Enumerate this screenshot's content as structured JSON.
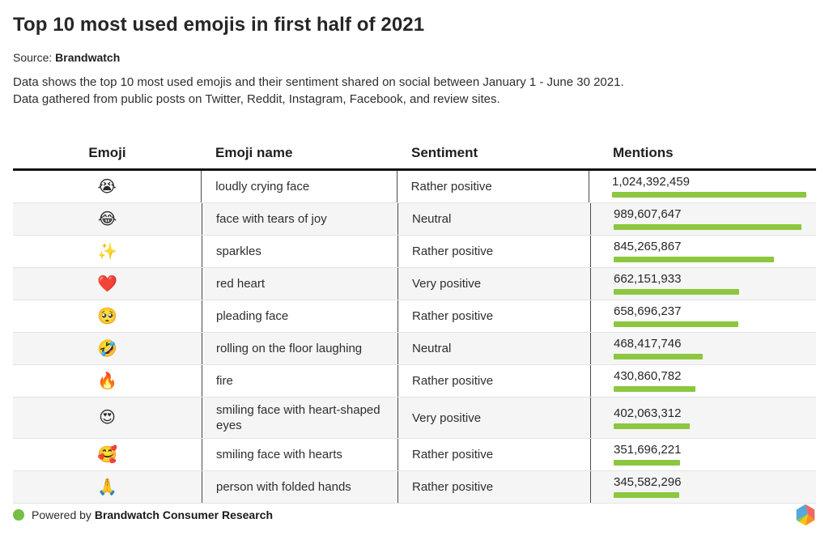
{
  "page": {
    "title": "Top 10 most used emojis in first half of 2021",
    "source_label": "Source:",
    "source_name": "Brandwatch",
    "description_line1": "Data shows the top 10 most used emojis and their sentiment shared on social between January 1 - June 30 2021.",
    "description_line2": "Data gathered from public posts on Twitter, Reddit, Instagram, Facebook, and review sites."
  },
  "table": {
    "columns": [
      "Emoji",
      "Emoji name",
      "Sentiment",
      "Mentions"
    ],
    "rows": [
      {
        "emoji": "😭",
        "name": "loudly crying face",
        "sentiment": "Rather positive",
        "mentions": "1,024,392,459"
      },
      {
        "emoji": "😂",
        "name": "face with tears of joy",
        "sentiment": "Neutral",
        "mentions": "989,607,647"
      },
      {
        "emoji": "✨",
        "name": "sparkles",
        "sentiment": "Rather positive",
        "mentions": "845,265,867"
      },
      {
        "emoji": "❤️",
        "name": "red heart",
        "sentiment": "Very positive",
        "mentions": "662,151,933"
      },
      {
        "emoji": "🥺",
        "name": "pleading face",
        "sentiment": "Rather positive",
        "mentions": "658,696,237"
      },
      {
        "emoji": "🤣",
        "name": "rolling on the floor laughing",
        "sentiment": "Neutral",
        "mentions": "468,417,746"
      },
      {
        "emoji": "🔥",
        "name": "fire",
        "sentiment": "Rather positive",
        "mentions": "430,860,782"
      },
      {
        "emoji": "😍",
        "name": "smiling face with heart-shaped eyes",
        "sentiment": "Very positive",
        "mentions": "402,063,312"
      },
      {
        "emoji": "🥰",
        "name": "smiling face with hearts",
        "sentiment": "Rather positive",
        "mentions": "351,696,221"
      },
      {
        "emoji": "🙏",
        "name": "person with folded hands",
        "sentiment": "Rather positive",
        "mentions": "345,582,296"
      }
    ]
  },
  "chart_data": {
    "type": "bar",
    "orientation": "horizontal",
    "title": "Top 10 most used emojis in first half of 2021",
    "categories": [
      "loudly crying face",
      "face with tears of joy",
      "sparkles",
      "red heart",
      "pleading face",
      "rolling on the floor laughing",
      "fire",
      "smiling face with heart-shaped eyes",
      "smiling face with hearts",
      "person with folded hands"
    ],
    "emojis": [
      "😭",
      "😂",
      "✨",
      "❤️",
      "🥺",
      "🤣",
      "🔥",
      "😍",
      "🥰",
      "🙏"
    ],
    "values": [
      1024392459,
      989607647,
      845265867,
      662151933,
      658696237,
      468417746,
      430860782,
      402063312,
      351696221,
      345582296
    ],
    "sentiments": [
      "Rather positive",
      "Neutral",
      "Rather positive",
      "Very positive",
      "Rather positive",
      "Neutral",
      "Rather positive",
      "Very positive",
      "Rather positive",
      "Rather positive"
    ],
    "xlabel": "Mentions",
    "xlim": [
      0,
      1024392459
    ],
    "grid": false,
    "legend": false
  },
  "footer": {
    "powered_by_label": "Powered by ",
    "brand_name": "Brandwatch Consumer Research"
  },
  "colors": {
    "bar_green": "#8dc63f",
    "footer_dot_green": "#74bf45",
    "logo_blue": "#55a7dc",
    "logo_salmon": "#ee6a61",
    "logo_orange": "#f6921e",
    "logo_yellow": "#ffc20e",
    "logo_green": "#8dc63f"
  }
}
